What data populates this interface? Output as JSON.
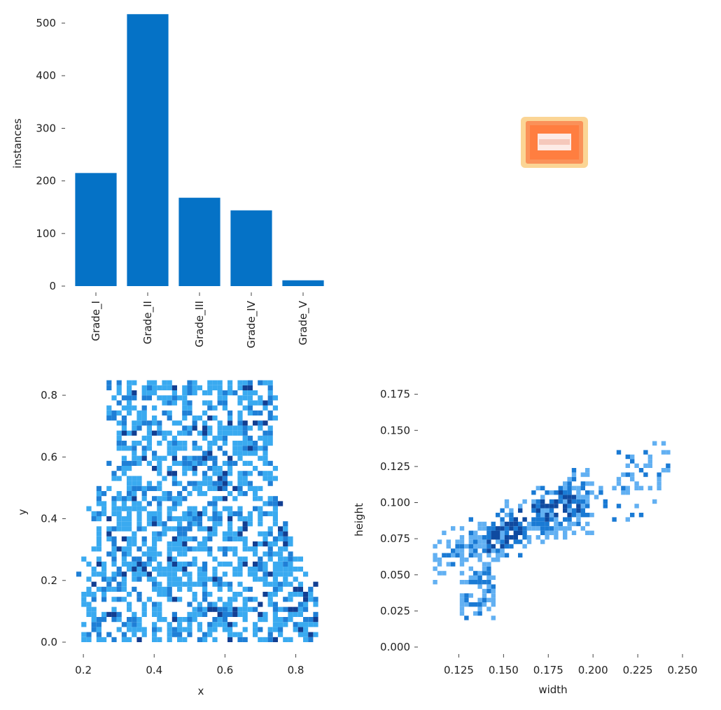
{
  "chart_data": [
    {
      "type": "bar",
      "categories": [
        "Grade_I",
        "Grade_II",
        "Grade_III",
        "Grade_IV",
        "Grade_V"
      ],
      "values": [
        215,
        517,
        168,
        144,
        11
      ],
      "xlabel": "",
      "ylabel": "instances",
      "ylim": [
        0,
        520
      ],
      "yticks": [
        "0",
        "100",
        "200",
        "300",
        "400",
        "500"
      ],
      "ytick_values": [
        0,
        100,
        200,
        300,
        400,
        500
      ],
      "bar_color": "#0572c6",
      "grid": false
    },
    {
      "type": "heatmap",
      "description": "normalized box overlay",
      "x_center": 0.5,
      "y_center": 0.5,
      "colors": [
        "#fbd08a",
        "#f98a52",
        "#fdebe6"
      ]
    },
    {
      "type": "heatmap",
      "xlabel": "x",
      "ylabel": "y",
      "xlim": [
        0.18,
        0.88
      ],
      "ylim": [
        0.0,
        0.85
      ],
      "xticks": [
        "0.2",
        "0.4",
        "0.6",
        "0.8"
      ],
      "xtick_values": [
        0.2,
        0.4,
        0.6,
        0.8
      ],
      "yticks": [
        "0.0",
        "0.2",
        "0.4",
        "0.6",
        "0.8"
      ],
      "ytick_values": [
        0.0,
        0.2,
        0.4,
        0.6,
        0.8
      ],
      "colors": [
        "#3aaaf0",
        "#1f7fd6",
        "#123f92"
      ],
      "grid": false
    },
    {
      "type": "heatmap",
      "xlabel": "width",
      "ylabel": "height",
      "xlim": [
        0.108,
        0.25
      ],
      "ylim": [
        0.0,
        0.185
      ],
      "xticks": [
        "0.125",
        "0.150",
        "0.175",
        "0.200",
        "0.225",
        "0.250"
      ],
      "xtick_values": [
        0.125,
        0.15,
        0.175,
        0.2,
        0.225,
        0.25
      ],
      "yticks": [
        "0.000",
        "0.025",
        "0.050",
        "0.075",
        "0.100",
        "0.125",
        "0.150",
        "0.175"
      ],
      "ytick_values": [
        0.0,
        0.025,
        0.05,
        0.075,
        0.1,
        0.125,
        0.15,
        0.175
      ],
      "colors": [
        "#62b0f2",
        "#1a7ad4",
        "#0f4aa0"
      ],
      "grid": false
    }
  ]
}
